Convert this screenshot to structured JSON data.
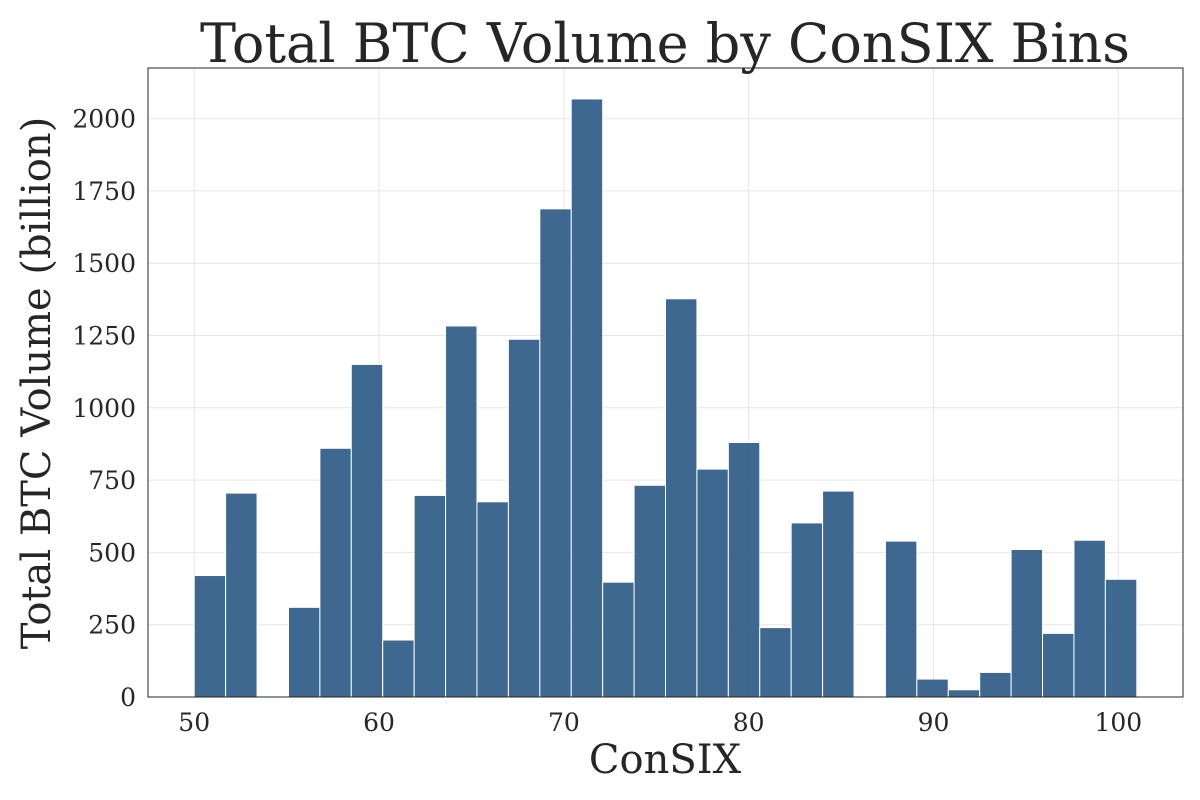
{
  "chart_data": {
    "type": "bar",
    "title": "Total BTC Volume by ConSIX Bins",
    "xlabel": "ConSIX",
    "ylabel": "Total BTC Volume (billion)",
    "xlim": [
      47.5,
      103.5
    ],
    "ylim": [
      0,
      2175
    ],
    "x_ticks": [
      50,
      60,
      70,
      80,
      90,
      100
    ],
    "x_tick_labels": [
      "50",
      "60",
      "70",
      "80",
      "90",
      "100"
    ],
    "y_ticks": [
      0,
      250,
      500,
      750,
      1000,
      1250,
      1500,
      1750,
      2000
    ],
    "y_tick_labels": [
      "0",
      "250",
      "500",
      "750",
      "1000",
      "1250",
      "1500",
      "1750",
      "2000"
    ],
    "grid": true,
    "bar_color": "#2e5b87",
    "bin_width": 1.7,
    "bins": [
      {
        "start": 50.0,
        "value": 420
      },
      {
        "start": 51.7,
        "value": 705
      },
      {
        "start": 55.1,
        "value": 310
      },
      {
        "start": 56.8,
        "value": 860
      },
      {
        "start": 58.5,
        "value": 1150
      },
      {
        "start": 60.2,
        "value": 197
      },
      {
        "start": 61.9,
        "value": 697
      },
      {
        "start": 63.6,
        "value": 1283
      },
      {
        "start": 65.3,
        "value": 675
      },
      {
        "start": 67.0,
        "value": 1237
      },
      {
        "start": 68.7,
        "value": 1688
      },
      {
        "start": 70.4,
        "value": 2068
      },
      {
        "start": 72.1,
        "value": 397
      },
      {
        "start": 73.8,
        "value": 732
      },
      {
        "start": 75.5,
        "value": 1377
      },
      {
        "start": 77.2,
        "value": 788
      },
      {
        "start": 78.9,
        "value": 880
      },
      {
        "start": 80.6,
        "value": 240
      },
      {
        "start": 82.3,
        "value": 602
      },
      {
        "start": 84.0,
        "value": 712
      },
      {
        "start": 87.4,
        "value": 539
      },
      {
        "start": 89.1,
        "value": 62
      },
      {
        "start": 90.8,
        "value": 25
      },
      {
        "start": 92.5,
        "value": 85
      },
      {
        "start": 94.2,
        "value": 510
      },
      {
        "start": 95.9,
        "value": 220
      },
      {
        "start": 97.6,
        "value": 542
      },
      {
        "start": 99.3,
        "value": 407
      }
    ]
  }
}
